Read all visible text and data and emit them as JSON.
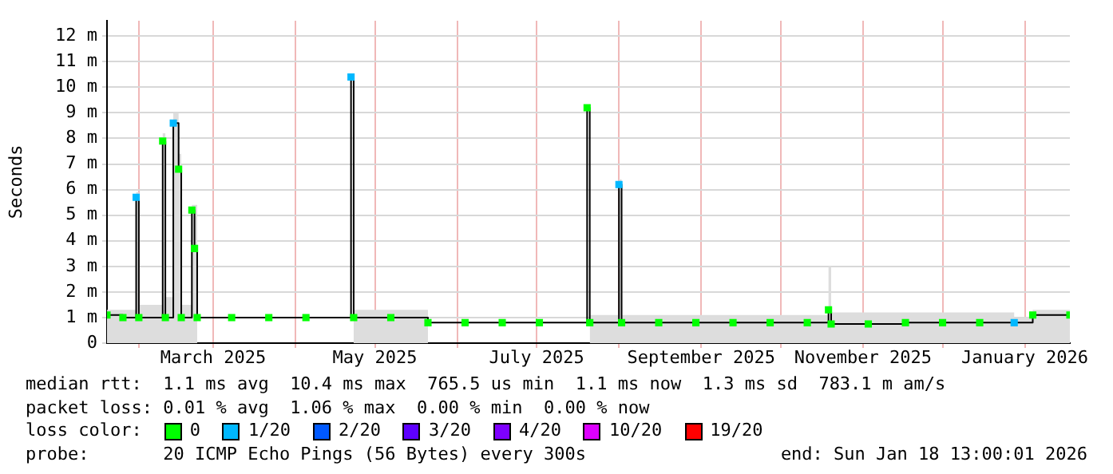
{
  "chart_data": {
    "type": "step",
    "ylabel": "Seconds",
    "legend_title": "loss color:",
    "legend": "bottom",
    "grid": true,
    "x": [
      "2025-01-20",
      "2025-01-26",
      "2025-01-31",
      "2025-02-01",
      "2025-02-10",
      "2025-02-11",
      "2025-02-14",
      "2025-02-16",
      "2025-02-17",
      "2025-02-21",
      "2025-02-22",
      "2025-02-23",
      "2025-03-08",
      "2025-03-22",
      "2025-04-05",
      "2025-04-22",
      "2025-04-23",
      "2025-05-07",
      "2025-05-21",
      "2025-06-04",
      "2025-06-18",
      "2025-07-02",
      "2025-07-20",
      "2025-07-21",
      "2025-08-01",
      "2025-08-02",
      "2025-08-16",
      "2025-08-30",
      "2025-09-13",
      "2025-09-27",
      "2025-10-11",
      "2025-10-19",
      "2025-10-20",
      "2025-11-03",
      "2025-11-17",
      "2025-12-01",
      "2025-12-15",
      "2025-12-28",
      "2026-01-04",
      "2026-01-18"
    ],
    "xlim": [
      "2025-01-20",
      "2026-01-18"
    ],
    "xticks": [
      {
        "value": "2025-02-01",
        "label": null
      },
      {
        "value": "2025-03-01",
        "label": "March 2025"
      },
      {
        "value": "2025-04-01",
        "label": null
      },
      {
        "value": "2025-05-01",
        "label": "May 2025"
      },
      {
        "value": "2025-06-01",
        "label": null
      },
      {
        "value": "2025-07-01",
        "label": "July 2025"
      },
      {
        "value": "2025-08-01",
        "label": null
      },
      {
        "value": "2025-09-01",
        "label": "September 2025"
      },
      {
        "value": "2025-10-01",
        "label": null
      },
      {
        "value": "2025-11-01",
        "label": "November 2025"
      },
      {
        "value": "2025-12-01",
        "label": null
      },
      {
        "value": "2026-01-01",
        "label": "January 2026"
      }
    ],
    "ylim": [
      0,
      12.6
    ],
    "yticks": [
      {
        "value": 0,
        "label": "0"
      },
      {
        "value": 1,
        "label": "1 m"
      },
      {
        "value": 2,
        "label": "2 m"
      },
      {
        "value": 3,
        "label": "3 m"
      },
      {
        "value": 4,
        "label": "4 m"
      },
      {
        "value": 5,
        "label": "5 m"
      },
      {
        "value": 6,
        "label": "6 m"
      },
      {
        "value": 7,
        "label": "7 m"
      },
      {
        "value": 8,
        "label": "8 m"
      },
      {
        "value": 9,
        "label": "9 m"
      },
      {
        "value": 10,
        "label": "10 m"
      },
      {
        "value": 11,
        "label": "11 m"
      },
      {
        "value": 12,
        "label": "12 m"
      }
    ],
    "series": [
      {
        "type": "area",
        "color": "#dddddd",
        "x": [
          "2025-01-20",
          "2025-01-31",
          "2025-02-01",
          "2025-02-10",
          "2025-02-11",
          "2025-02-14",
          "2025-02-16",
          "2025-02-17",
          "2025-02-21",
          "2025-02-23",
          "2025-04-22",
          "2025-04-23",
          "2025-05-21",
          "2025-07-20",
          "2025-07-21",
          "2025-08-01",
          "2025-08-02",
          "2025-10-19",
          "2025-10-20",
          "2025-12-28",
          "2026-01-04",
          "2026-01-18"
        ],
        "values": [
          1.3,
          5.9,
          1.5,
          8.2,
          1.8,
          9.0,
          7.4,
          1.5,
          5.4,
          1.3,
          null,
          1.3,
          1.1,
          null,
          1.1,
          6.4,
          1.1,
          3.0,
          1.2,
          1.0,
          1.3,
          1.3
        ]
      },
      {
        "color": "#000000",
        "values": [
          1.1,
          1.0,
          5.7,
          1.0,
          7.9,
          1.0,
          8.6,
          6.8,
          1.0,
          5.2,
          3.7,
          1.0,
          1.0,
          1.0,
          1.0,
          10.4,
          1.0,
          1.0,
          0.8,
          0.8,
          0.8,
          0.8,
          9.2,
          0.8,
          6.2,
          0.8,
          0.8,
          0.8,
          0.8,
          0.8,
          0.8,
          1.3,
          0.75,
          0.75,
          0.8,
          0.8,
          0.8,
          0.8,
          1.1,
          1.1
        ]
      },
      {
        "type": "scatter",
        "marker": "square",
        "name": "0",
        "color": "#00ff00",
        "x": [
          "2025-01-20",
          "2025-01-26",
          "2025-02-01",
          "2025-02-10",
          "2025-02-11",
          "2025-02-16",
          "2025-02-17",
          "2025-02-21",
          "2025-02-22",
          "2025-02-23",
          "2025-03-08",
          "2025-03-22",
          "2025-04-05",
          "2025-04-23",
          "2025-05-07",
          "2025-05-21",
          "2025-06-04",
          "2025-06-18",
          "2025-07-02",
          "2025-07-20",
          "2025-07-21",
          "2025-08-02",
          "2025-08-16",
          "2025-08-30",
          "2025-09-13",
          "2025-09-27",
          "2025-10-11",
          "2025-10-19",
          "2025-10-20",
          "2025-11-03",
          "2025-11-17",
          "2025-12-01",
          "2025-12-15",
          "2026-01-04",
          "2026-01-18"
        ],
        "values": [
          1.1,
          1.0,
          1.0,
          7.9,
          1.0,
          6.8,
          1.0,
          5.2,
          3.7,
          1.0,
          1.0,
          1.0,
          1.0,
          1.0,
          1.0,
          0.8,
          0.8,
          0.8,
          0.8,
          9.2,
          0.8,
          0.8,
          0.8,
          0.8,
          0.8,
          0.8,
          0.8,
          1.3,
          0.75,
          0.75,
          0.8,
          0.8,
          0.8,
          1.1,
          1.1
        ]
      },
      {
        "type": "scatter",
        "marker": "square",
        "name": "1/20",
        "color": "#00b8ff",
        "x": [
          "2025-01-31",
          "2025-02-14",
          "2025-04-22",
          "2025-08-01",
          "2025-12-28"
        ],
        "values": [
          5.7,
          8.6,
          10.4,
          6.2,
          0.8
        ]
      },
      {
        "type": "scatter",
        "name": "2/20",
        "color": "#0059ff",
        "x": [
          null
        ],
        "values": [
          null
        ]
      },
      {
        "type": "scatter",
        "name": "3/20",
        "color": "#5e00ff",
        "x": [
          null
        ],
        "values": [
          null
        ]
      },
      {
        "type": "scatter",
        "name": "4/20",
        "color": "#7e00ff",
        "x": [
          null
        ],
        "values": [
          null
        ]
      },
      {
        "type": "scatter",
        "name": "10/20",
        "color": "#dd00ff",
        "x": [
          null
        ],
        "values": [
          null
        ]
      },
      {
        "type": "scatter",
        "name": "19/20",
        "color": "#ff0000",
        "x": [
          null
        ],
        "values": [
          null
        ]
      }
    ],
    "annotations": [
      "median rtt:  1.1 ms avg  10.4 ms max  765.5 us min  1.1 ms now  1.3 ms sd  783.1 m am/s",
      "packet loss: 0.01 % avg  1.06 % max  0.00 % min  0.00 % now",
      "probe:       20 ICMP Echo Pings (56 Bytes) every 300s",
      "end: Sun Jan 18 13:00:01 2026"
    ]
  }
}
